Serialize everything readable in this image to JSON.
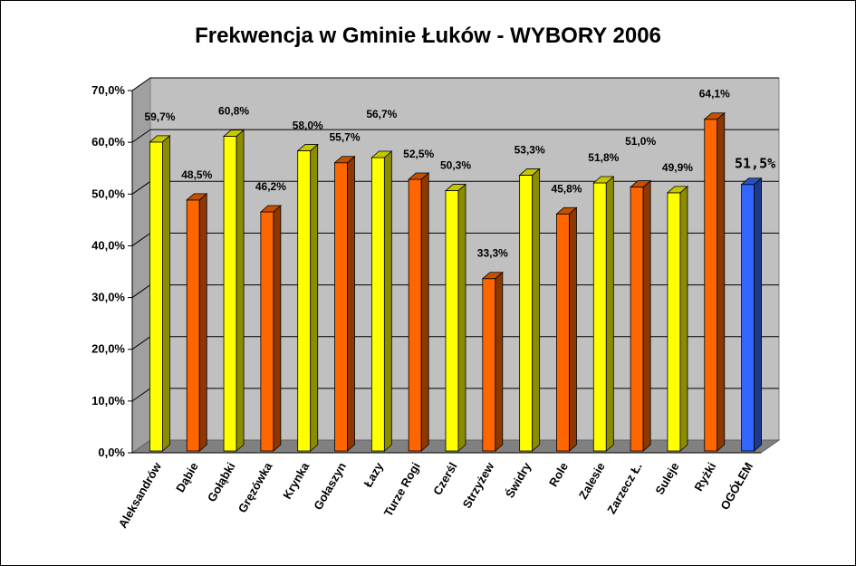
{
  "chart_data": {
    "type": "bar",
    "title": "Frekwencja w Gminie Łuków - WYBORY 2006",
    "categories": [
      "Aleksandrów",
      "Dąbie",
      "Gołąbki",
      "Gręzówka",
      "Krynka",
      "Gołaszyn",
      "Łazy",
      "Turze Rogi",
      "Czerśl",
      "Strzyżew",
      "Świdry",
      "Role",
      "Zalesie",
      "Zarzecz Ł.",
      "Suleje",
      "Ryżki",
      "OGÓŁEM"
    ],
    "values": [
      59.7,
      48.5,
      60.8,
      46.2,
      58.0,
      55.7,
      56.7,
      52.5,
      50.3,
      33.3,
      53.3,
      45.8,
      51.8,
      51.0,
      49.9,
      64.1,
      51.5
    ],
    "value_labels": [
      "59,7%",
      "48,5%",
      "60,8%",
      "46,2%",
      "58,0%",
      "55,7%",
      "56,7%",
      "52,5%",
      "50,3%",
      "33,3%",
      "53,3%",
      "45,8%",
      "51,8%",
      "51,0%",
      "49,9%",
      "64,1%",
      "51,5%"
    ],
    "yticks": [
      "0,0%",
      "10,0%",
      "20,0%",
      "30,0%",
      "40,0%",
      "50,0%",
      "60,0%",
      "70,0%"
    ],
    "ylim": [
      0,
      70
    ],
    "grid": true,
    "xlabel": "",
    "ylabel": "",
    "bar_colors": [
      "#ffff00",
      "#ff6600",
      "#ffff00",
      "#ff6600",
      "#ffff00",
      "#ff6600",
      "#ffff00",
      "#ff6600",
      "#ffff00",
      "#ff6600",
      "#ffff00",
      "#ff6600",
      "#ffff00",
      "#ff6600",
      "#ffff00",
      "#ff6600",
      "#3366ff"
    ],
    "plot_background": "#c0c0c0",
    "floor_color": "#808080"
  }
}
